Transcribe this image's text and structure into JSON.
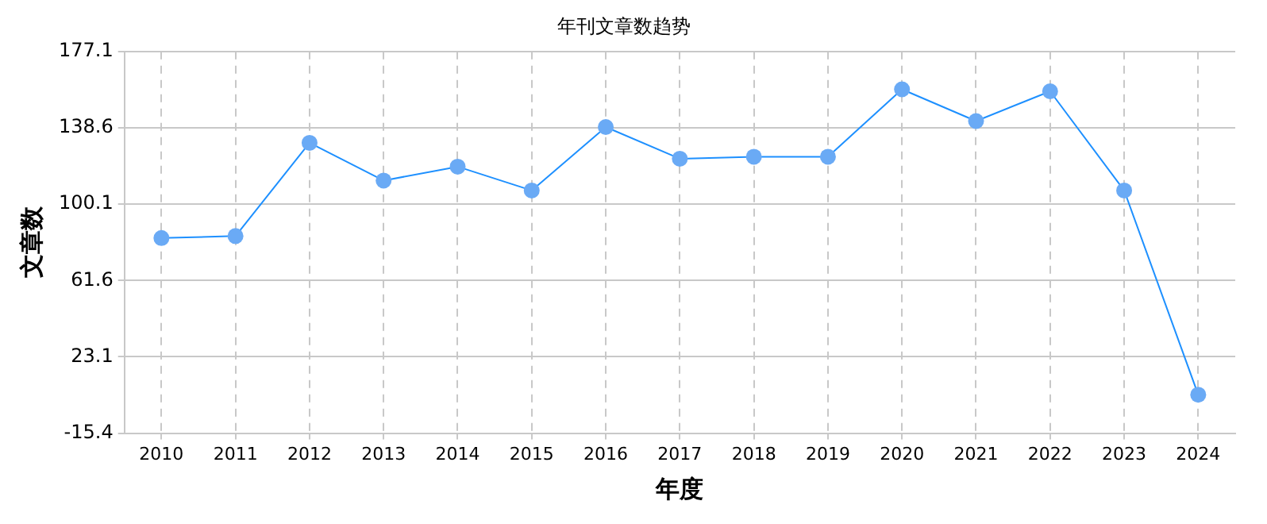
{
  "chart_data": {
    "type": "line",
    "title": "年刊文章数趋势",
    "xlabel": "年度",
    "ylabel": "文章数",
    "categories": [
      "2010",
      "2011",
      "2012",
      "2013",
      "2014",
      "2015",
      "2016",
      "2017",
      "2018",
      "2019",
      "2020",
      "2021",
      "2022",
      "2023",
      "2024"
    ],
    "series": [
      {
        "color": "#1e90ff",
        "values": [
          83,
          84,
          131,
          112,
          119,
          107,
          139,
          123,
          124,
          124,
          158,
          142,
          157,
          107,
          4
        ]
      }
    ],
    "ylim": [
      -15.4,
      177.1
    ],
    "yticks": [
      -15.4,
      23.1,
      61.6,
      100.1,
      138.6,
      177.1
    ],
    "grid": true,
    "marker": "circle",
    "line_style": "solid",
    "legend": false
  }
}
